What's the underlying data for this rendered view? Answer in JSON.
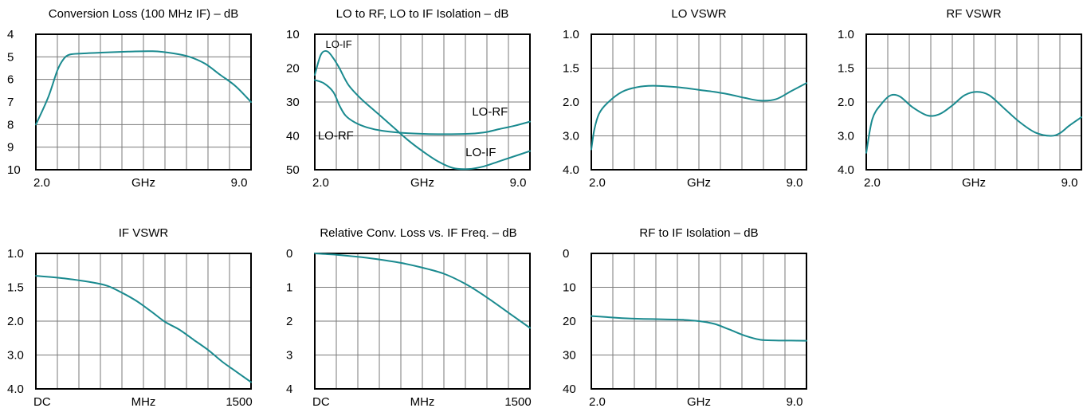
{
  "colors": {
    "curve": "#1a8a8f",
    "grid": "#7a7a7a",
    "frame": "#000000"
  },
  "chart_data": [
    {
      "id": "conv-loss",
      "type": "line",
      "title": "Conversion Loss (100 MHz IF) – dB",
      "xlim": [
        2.0,
        9.0
      ],
      "ylim": [
        4,
        10
      ],
      "y_inverted": true,
      "yticks": [
        "4",
        "5",
        "6",
        "7",
        "8",
        "9",
        "10"
      ],
      "xticks": [
        "2.0",
        "GHz",
        "9.0"
      ],
      "grid": true,
      "series": [
        {
          "x": [
            2.0,
            2.4,
            2.7,
            2.9,
            3.1,
            3.5,
            4.0,
            5.0,
            5.8,
            6.5,
            7.0,
            7.5,
            8.0,
            8.5,
            9.0
          ],
          "y": [
            8.0,
            6.8,
            5.6,
            5.1,
            4.9,
            4.85,
            4.82,
            4.77,
            4.75,
            4.85,
            5.0,
            5.3,
            5.8,
            6.3,
            7.0
          ]
        }
      ],
      "annotations": []
    },
    {
      "id": "lo-isolation",
      "type": "line",
      "title": "LO to RF, LO to IF Isolation – dB",
      "xlim": [
        2.0,
        9.0
      ],
      "ylim": [
        10,
        50
      ],
      "y_inverted": true,
      "yticks": [
        "10",
        "20",
        "30",
        "40",
        "50"
      ],
      "xticks": [
        "2.0",
        "GHz",
        "9.0"
      ],
      "grid": true,
      "series": [
        {
          "name": "LO-IF",
          "x": [
            2.0,
            2.2,
            2.4,
            2.6,
            2.8,
            3.1,
            3.5,
            4.0,
            4.5,
            5.0,
            5.5,
            6.0,
            6.5,
            7.0,
            7.5,
            8.0,
            8.5,
            9.0
          ],
          "y": [
            22.0,
            16.0,
            15.0,
            17.0,
            20.0,
            25.0,
            29.0,
            33.0,
            37.0,
            41.0,
            44.5,
            47.5,
            49.5,
            49.8,
            49.0,
            47.5,
            46.0,
            44.5
          ]
        },
        {
          "name": "LO-RF",
          "x": [
            2.0,
            2.3,
            2.6,
            2.8,
            3.0,
            3.3,
            3.7,
            4.2,
            5.0,
            6.0,
            7.0,
            7.5,
            8.0,
            8.5,
            9.0
          ],
          "y": [
            23.5,
            24.5,
            27.0,
            31.0,
            34.0,
            36.0,
            37.5,
            38.5,
            39.2,
            39.5,
            39.4,
            39.0,
            38.0,
            37.0,
            35.8
          ]
        }
      ],
      "annotations": [
        "LO-IF",
        "LO-RF",
        "LO-RF",
        "LO-IF"
      ]
    },
    {
      "id": "lo-vswr",
      "type": "line",
      "title": "LO VSWR",
      "xlim": [
        2.0,
        9.0
      ],
      "y_scale": "vswr",
      "y_inverted": true,
      "yticks": [
        "1.0",
        "1.5",
        "2.0",
        "3.0",
        "4.0"
      ],
      "xticks": [
        "2.0",
        "GHz",
        "9.0"
      ],
      "grid": true,
      "series": [
        {
          "x": [
            2.0,
            2.1,
            2.25,
            2.5,
            3.0,
            3.5,
            4.0,
            4.5,
            5.0,
            5.5,
            6.0,
            6.5,
            7.0,
            7.5,
            8.0,
            8.5,
            9.0
          ],
          "y": [
            3.4,
            2.8,
            2.35,
            2.05,
            1.85,
            1.78,
            1.76,
            1.77,
            1.79,
            1.82,
            1.85,
            1.89,
            1.94,
            1.98,
            1.96,
            1.84,
            1.72
          ]
        }
      ],
      "annotations": []
    },
    {
      "id": "rf-vswr",
      "type": "line",
      "title": "RF VSWR",
      "xlim": [
        2.0,
        9.0
      ],
      "y_scale": "vswr",
      "y_inverted": true,
      "yticks": [
        "1.0",
        "1.5",
        "2.0",
        "3.0",
        "4.0"
      ],
      "xticks": [
        "2.0",
        "GHz",
        "9.0"
      ],
      "grid": true,
      "series": [
        {
          "x": [
            2.0,
            2.2,
            2.5,
            2.8,
            3.1,
            3.5,
            4.0,
            4.4,
            4.8,
            5.2,
            5.6,
            6.0,
            6.5,
            7.0,
            7.5,
            8.0,
            8.3,
            8.6,
            9.0
          ],
          "y": [
            3.5,
            2.5,
            2.05,
            1.9,
            1.92,
            2.15,
            2.4,
            2.35,
            2.1,
            1.9,
            1.85,
            1.9,
            2.2,
            2.6,
            2.9,
            3.0,
            2.92,
            2.7,
            2.45
          ]
        }
      ],
      "annotations": []
    },
    {
      "id": "if-vswr",
      "type": "line",
      "title": "IF VSWR",
      "xlim": [
        0,
        1500
      ],
      "y_scale": "vswr",
      "y_inverted": true,
      "yticks": [
        "1.0",
        "1.5",
        "2.0",
        "3.0",
        "4.0"
      ],
      "xticks": [
        "DC",
        "MHz",
        "1500"
      ],
      "grid": true,
      "series": [
        {
          "x": [
            0,
            200,
            400,
            500,
            600,
            700,
            800,
            900,
            1000,
            1100,
            1200,
            1300,
            1400,
            1500
          ],
          "y": [
            1.33,
            1.37,
            1.43,
            1.48,
            1.58,
            1.7,
            1.85,
            2.02,
            2.25,
            2.55,
            2.85,
            3.2,
            3.5,
            3.8
          ]
        }
      ],
      "annotations": []
    },
    {
      "id": "rel-conv-loss",
      "type": "line",
      "title": "Relative Conv. Loss vs. IF Freq. – dB",
      "xlim": [
        0,
        1500
      ],
      "ylim": [
        0,
        4
      ],
      "y_inverted": true,
      "yticks": [
        "0",
        "1",
        "2",
        "3",
        "4"
      ],
      "xticks": [
        "DC",
        "MHz",
        "1500"
      ],
      "grid": true,
      "series": [
        {
          "x": [
            0,
            150,
            300,
            450,
            600,
            750,
            900,
            1050,
            1200,
            1350,
            1500
          ],
          "y": [
            0.0,
            0.04,
            0.1,
            0.18,
            0.28,
            0.42,
            0.6,
            0.9,
            1.3,
            1.75,
            2.2
          ]
        }
      ],
      "annotations": []
    },
    {
      "id": "rf-if-isolation",
      "type": "line",
      "title": "RF to IF Isolation – dB",
      "xlim": [
        2.0,
        9.0
      ],
      "ylim": [
        0,
        40
      ],
      "y_inverted": true,
      "yticks": [
        "0",
        "10",
        "20",
        "30",
        "40"
      ],
      "xticks": [
        "2.0",
        "GHz",
        "9.0"
      ],
      "grid": true,
      "series": [
        {
          "x": [
            2.0,
            2.5,
            3.0,
            3.5,
            4.0,
            4.5,
            5.0,
            5.5,
            6.0,
            6.5,
            7.0,
            7.5,
            8.0,
            8.5,
            9.0
          ],
          "y": [
            18.5,
            18.8,
            19.1,
            19.3,
            19.4,
            19.5,
            19.6,
            20.0,
            20.8,
            22.5,
            24.3,
            25.5,
            25.7,
            25.75,
            25.8
          ]
        }
      ],
      "annotations": []
    }
  ]
}
